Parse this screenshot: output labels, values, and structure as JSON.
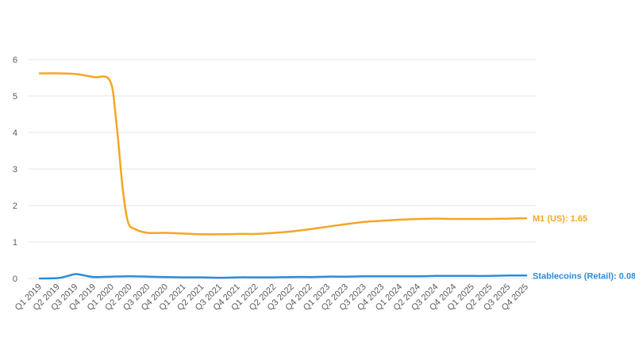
{
  "chart_data": {
    "type": "line",
    "title": "",
    "xlabel": "",
    "ylabel": "",
    "ylim": [
      0,
      6
    ],
    "yticks": [
      "0",
      "1",
      "2",
      "3",
      "4",
      "5",
      "6"
    ],
    "grid": "horizontal",
    "categories": [
      "Q1 2019",
      "Q2 2019",
      "Q3 2019",
      "Q4 2019",
      "Q1 2020",
      "Q2 2020",
      "Q3 2020",
      "Q4 2020",
      "Q1 2021",
      "Q2 2021",
      "Q3 2021",
      "Q4 2021",
      "Q1 2022",
      "Q2 2022",
      "Q3 2022",
      "Q4 2022",
      "Q1 2023",
      "Q2 2023",
      "Q3 2023",
      "Q4 2023",
      "Q1 2024",
      "Q2 2024",
      "Q3 2024",
      "Q4 2024",
      "Q1 2025",
      "Q2 2025",
      "Q3 2025",
      "Q4 2025"
    ],
    "series": [
      {
        "name": "M1 (US)",
        "end_label": "M1 (US): 1.65",
        "color": "#F5A623",
        "points": [
          [
            0,
            5.62
          ],
          [
            1,
            5.62
          ],
          [
            2,
            5.6
          ],
          [
            3,
            5.52
          ],
          [
            3.9,
            5.42
          ],
          [
            4.25,
            4.3
          ],
          [
            4.6,
            2.5
          ],
          [
            4.9,
            1.55
          ],
          [
            5.3,
            1.35
          ],
          [
            6,
            1.25
          ],
          [
            7,
            1.25
          ],
          [
            8,
            1.23
          ],
          [
            9,
            1.21
          ],
          [
            10,
            1.21
          ],
          [
            11,
            1.22
          ],
          [
            12,
            1.22
          ],
          [
            13,
            1.25
          ],
          [
            14,
            1.29
          ],
          [
            15,
            1.35
          ],
          [
            16,
            1.42
          ],
          [
            17,
            1.49
          ],
          [
            18,
            1.55
          ],
          [
            19,
            1.58
          ],
          [
            20,
            1.61
          ],
          [
            21,
            1.63
          ],
          [
            22,
            1.64
          ],
          [
            23,
            1.63
          ],
          [
            24,
            1.63
          ],
          [
            25,
            1.63
          ],
          [
            26,
            1.64
          ],
          [
            27,
            1.65
          ]
        ]
      },
      {
        "name": "Stablecoins (Retail)",
        "end_label": "Stablecoins (Retail): 0.08",
        "color": "#2A8CDB",
        "points": [
          [
            0,
            0.0
          ],
          [
            1,
            0.01
          ],
          [
            1.5,
            0.06
          ],
          [
            2,
            0.12
          ],
          [
            2.5,
            0.08
          ],
          [
            3,
            0.04
          ],
          [
            4,
            0.05
          ],
          [
            5,
            0.06
          ],
          [
            6,
            0.05
          ],
          [
            7,
            0.04
          ],
          [
            8,
            0.03
          ],
          [
            9,
            0.03
          ],
          [
            10,
            0.02
          ],
          [
            11,
            0.03
          ],
          [
            12,
            0.03
          ],
          [
            13,
            0.03
          ],
          [
            14,
            0.04
          ],
          [
            15,
            0.04
          ],
          [
            16,
            0.05
          ],
          [
            17,
            0.05
          ],
          [
            18,
            0.06
          ],
          [
            19,
            0.06
          ],
          [
            20,
            0.06
          ],
          [
            21,
            0.06
          ],
          [
            22,
            0.07
          ],
          [
            23,
            0.07
          ],
          [
            24,
            0.07
          ],
          [
            25,
            0.07
          ],
          [
            26,
            0.08
          ],
          [
            27,
            0.08
          ]
        ]
      }
    ]
  }
}
